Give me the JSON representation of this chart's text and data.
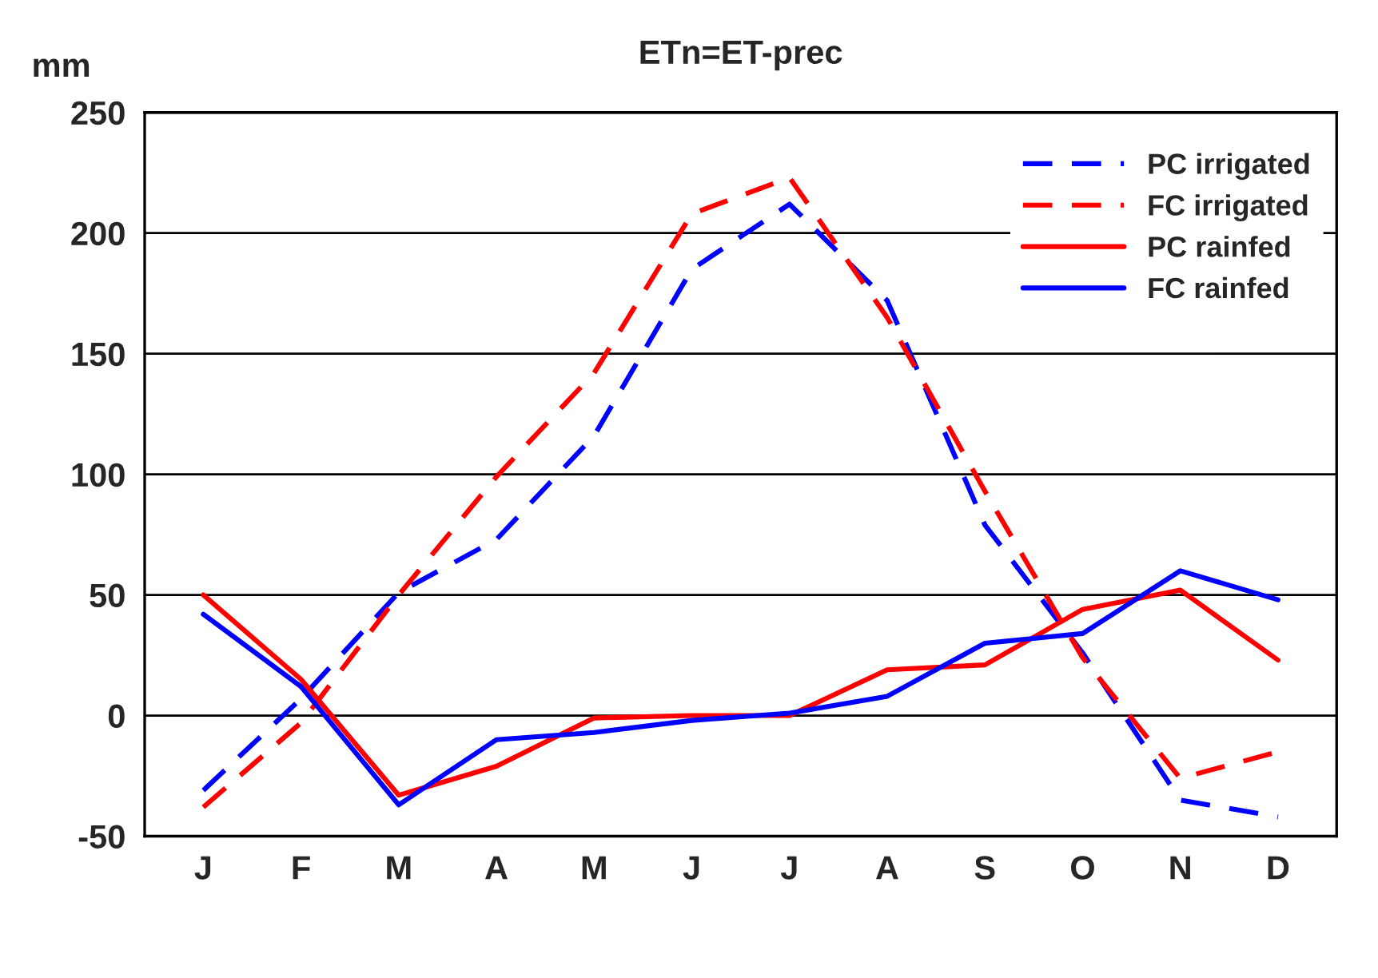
{
  "chart_data": {
    "type": "line",
    "title": "ETn=ET-prec",
    "ylabel": "mm",
    "categories": [
      "J",
      "F",
      "M",
      "A",
      "M",
      "J",
      "J",
      "A",
      "S",
      "O",
      "N",
      "D"
    ],
    "ylim": [
      -50,
      250
    ],
    "yticks": [
      -50,
      0,
      50,
      100,
      150,
      200,
      250
    ],
    "grid": "y",
    "legend": "top right",
    "marker": "none",
    "series": [
      {
        "name": "PC irrigated",
        "color": "#0000ff",
        "line_style": "dashed",
        "values": [
          -31,
          7,
          51,
          73,
          116,
          185,
          212,
          172,
          79,
          26,
          -35,
          -42
        ]
      },
      {
        "name": "FC irrigated",
        "color": "#ff0000",
        "line_style": "dashed",
        "values": [
          -38,
          -3,
          50,
          99,
          142,
          208,
          223,
          165,
          93,
          24,
          -26,
          -15
        ]
      },
      {
        "name": "PC rainfed",
        "color": "#ff0000",
        "line_style": "solid",
        "values": [
          50,
          15,
          -33,
          -21,
          -1,
          0,
          0,
          19,
          21,
          44,
          52,
          23
        ]
      },
      {
        "name": "FC rainfed",
        "color": "#0000ff",
        "line_style": "solid",
        "values": [
          42,
          12,
          -37,
          -10,
          -7,
          -2,
          1,
          8,
          30,
          34,
          60,
          48
        ]
      }
    ]
  }
}
